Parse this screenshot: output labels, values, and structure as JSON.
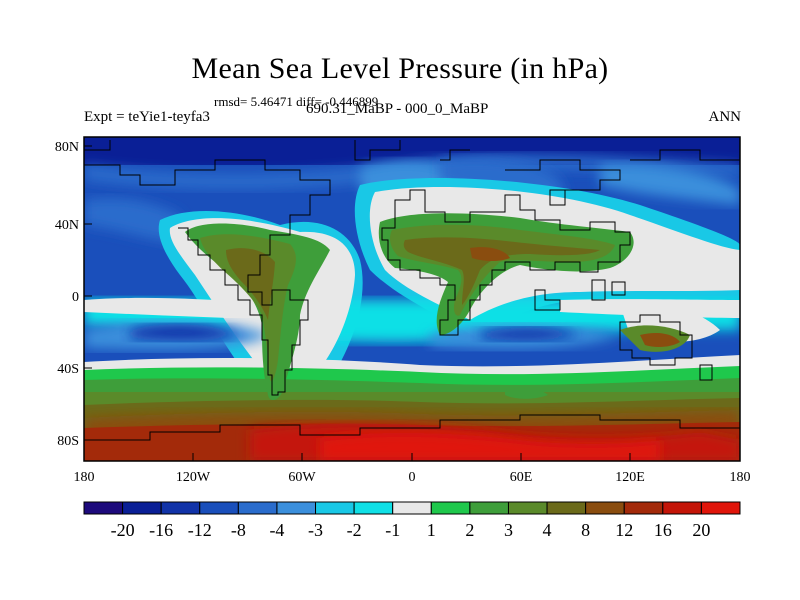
{
  "header": {
    "title": "Mean Sea Level Pressure (in hPa)",
    "stats": "rmsd= 5.46471 diff= -0.446899",
    "experiment": "Expt = teYie1-teyfa3",
    "period": "690.31_MaBP - 000_0_MaBP",
    "season": "ANN"
  },
  "map": {
    "lat_ticks": [
      "80N",
      "40N",
      "0",
      "40S",
      "80S"
    ],
    "lon_ticks": [
      "180",
      "120W",
      "60W",
      "0",
      "60E",
      "120E",
      "180"
    ]
  },
  "colorbar": {
    "colors": [
      "#1d0a7c",
      "#0a1f96",
      "#1133a8",
      "#1a4fbb",
      "#2a6ccc",
      "#3b8fdc",
      "#19c8e6",
      "#10e0e6",
      "#e8e8e8",
      "#1fc84c",
      "#3e9e3a",
      "#5a8a2a",
      "#6b6a1a",
      "#8a4d0f",
      "#a32a0a",
      "#c41508",
      "#e0150a"
    ],
    "labels": [
      "-20",
      "-16",
      "-12",
      "-8",
      "-4",
      "-3",
      "-2",
      "-1",
      "1",
      "2",
      "3",
      "4",
      "8",
      "12",
      "16",
      "20"
    ]
  }
}
